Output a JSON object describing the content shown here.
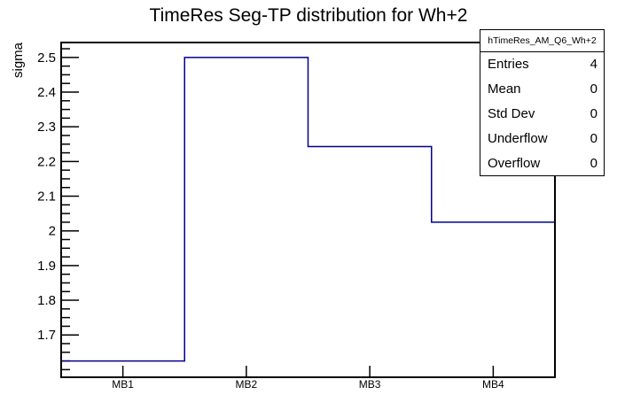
{
  "window": {
    "title": "TimeRes Seg-TP distribution for Wh+2"
  },
  "colors": {
    "hist_line": "#00008b",
    "frame": "#000000",
    "text": "#000000",
    "background": "#ffffff"
  },
  "chart_data": {
    "type": "bar",
    "subtype": "step-histogram-outline",
    "title": "TimeRes Seg-TP distribution for Wh+2",
    "categories": [
      "MB1",
      "MB2",
      "MB3",
      "MB4"
    ],
    "values": [
      1.625,
      2.5,
      2.243,
      2.025
    ],
    "xlabel": "",
    "ylabel": "sigma",
    "ylim": [
      1.578,
      2.543
    ],
    "y_major_ticks": [
      1.7,
      1.8,
      1.9,
      2.0,
      2.1,
      2.2,
      2.3,
      2.4,
      2.5
    ],
    "y_tick_labels": [
      "1.7",
      "1.8",
      "1.9",
      "2",
      "2.1",
      "2.2",
      "2.3",
      "2.4",
      "2.5"
    ],
    "y_minor_step": 0.025,
    "grid": false,
    "legend": "none",
    "line_color": "#00008b"
  },
  "stats_box": {
    "title": "hTimeRes_AM_Q6_Wh+2",
    "rows": [
      {
        "label": "Entries",
        "value": "4"
      },
      {
        "label": "Mean",
        "value": "0"
      },
      {
        "label": "Std Dev",
        "value": "0"
      },
      {
        "label": "Underflow",
        "value": "0"
      },
      {
        "label": "Overflow",
        "value": "0"
      }
    ]
  }
}
